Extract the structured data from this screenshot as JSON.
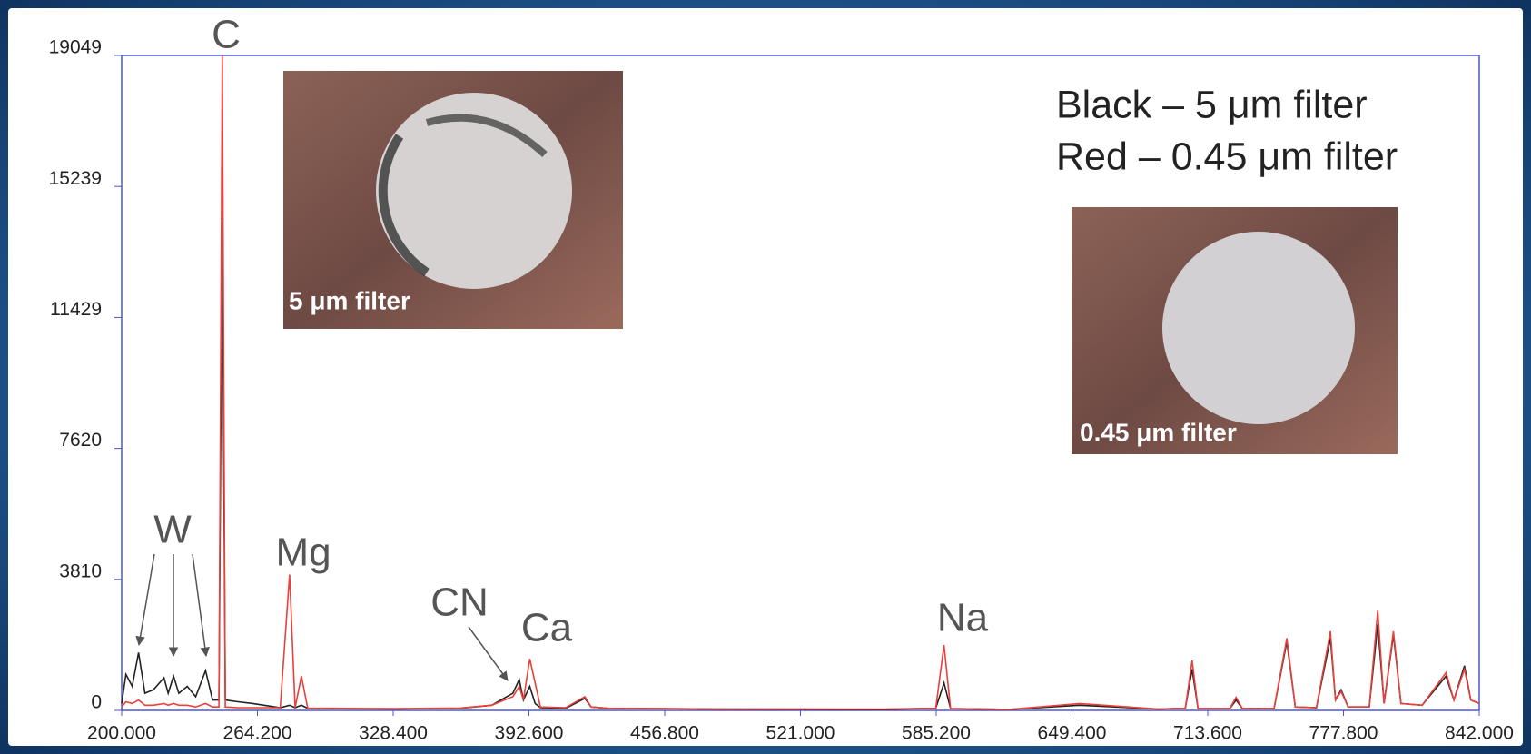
{
  "chart_data": {
    "type": "line",
    "annotations": [
      "C",
      "W",
      "Mg",
      "CN",
      "Ca",
      "Na",
      "5 μm filter",
      "0.45 μm filter"
    ],
    "x": [
      200,
      202,
      205,
      208,
      211,
      215,
      220,
      222,
      224.5,
      227,
      231,
      235,
      239.7,
      243,
      246,
      247.6,
      249,
      255,
      262,
      275,
      279.4,
      282,
      285,
      288,
      300,
      330,
      360,
      375,
      385,
      388,
      390,
      393,
      395.5,
      398,
      410,
      419,
      422,
      430,
      480,
      560,
      585,
      588.9,
      592,
      620,
      653,
      690,
      703,
      706.2,
      709,
      724,
      727,
      730,
      745,
      751,
      755,
      765,
      771.6,
      774,
      776.7,
      780,
      790,
      794,
      797,
      801.4,
      805,
      815,
      826.3,
      830,
      835,
      838,
      842
    ],
    "series": [
      {
        "name": "Black – 5 μm filter",
        "color": "#222222",
        "values": [
          200,
          1050,
          700,
          1680,
          500,
          600,
          950,
          500,
          1000,
          500,
          700,
          400,
          1160,
          300,
          300,
          14200,
          300,
          250,
          200,
          80,
          150,
          80,
          150,
          60,
          50,
          40,
          60,
          150,
          500,
          900,
          300,
          700,
          200,
          80,
          60,
          350,
          100,
          60,
          40,
          30,
          60,
          800,
          50,
          30,
          150,
          40,
          60,
          1200,
          50,
          50,
          300,
          50,
          60,
          2000,
          100,
          80,
          2100,
          300,
          600,
          100,
          100,
          2500,
          200,
          2200,
          200,
          150,
          1000,
          300,
          1300,
          300,
          200
        ]
      },
      {
        "name": "Red – 0.45 μm filter",
        "color": "#e8413c",
        "values": [
          100,
          250,
          200,
          300,
          150,
          150,
          200,
          150,
          200,
          150,
          150,
          100,
          200,
          100,
          100,
          19049,
          100,
          80,
          80,
          80,
          3950,
          80,
          1000,
          60,
          60,
          50,
          70,
          150,
          400,
          700,
          300,
          1500,
          800,
          100,
          80,
          400,
          100,
          60,
          40,
          40,
          60,
          1900,
          50,
          30,
          200,
          40,
          60,
          1450,
          50,
          50,
          380,
          50,
          60,
          2100,
          100,
          80,
          2300,
          300,
          550,
          100,
          100,
          2900,
          200,
          2300,
          200,
          150,
          1100,
          300,
          1200,
          300,
          200
        ]
      }
    ],
    "xlim": [
      200,
      842
    ],
    "ylim": [
      0,
      19049
    ],
    "xticks": [
      {
        "value": 200,
        "label": "200.000"
      },
      {
        "value": 264.2,
        "label": "264.200"
      },
      {
        "value": 328.4,
        "label": "328.400"
      },
      {
        "value": 392.6,
        "label": "392.600"
      },
      {
        "value": 456.8,
        "label": "456.800"
      },
      {
        "value": 521,
        "label": "521.000"
      },
      {
        "value": 585.2,
        "label": "585.200"
      },
      {
        "value": 649.4,
        "label": "649.400"
      },
      {
        "value": 713.6,
        "label": "713.600"
      },
      {
        "value": 777.8,
        "label": "777.800"
      },
      {
        "value": 842,
        "label": "842.000"
      }
    ],
    "yticks": [
      0,
      3810,
      7620,
      11429,
      15239,
      19049
    ]
  }
}
